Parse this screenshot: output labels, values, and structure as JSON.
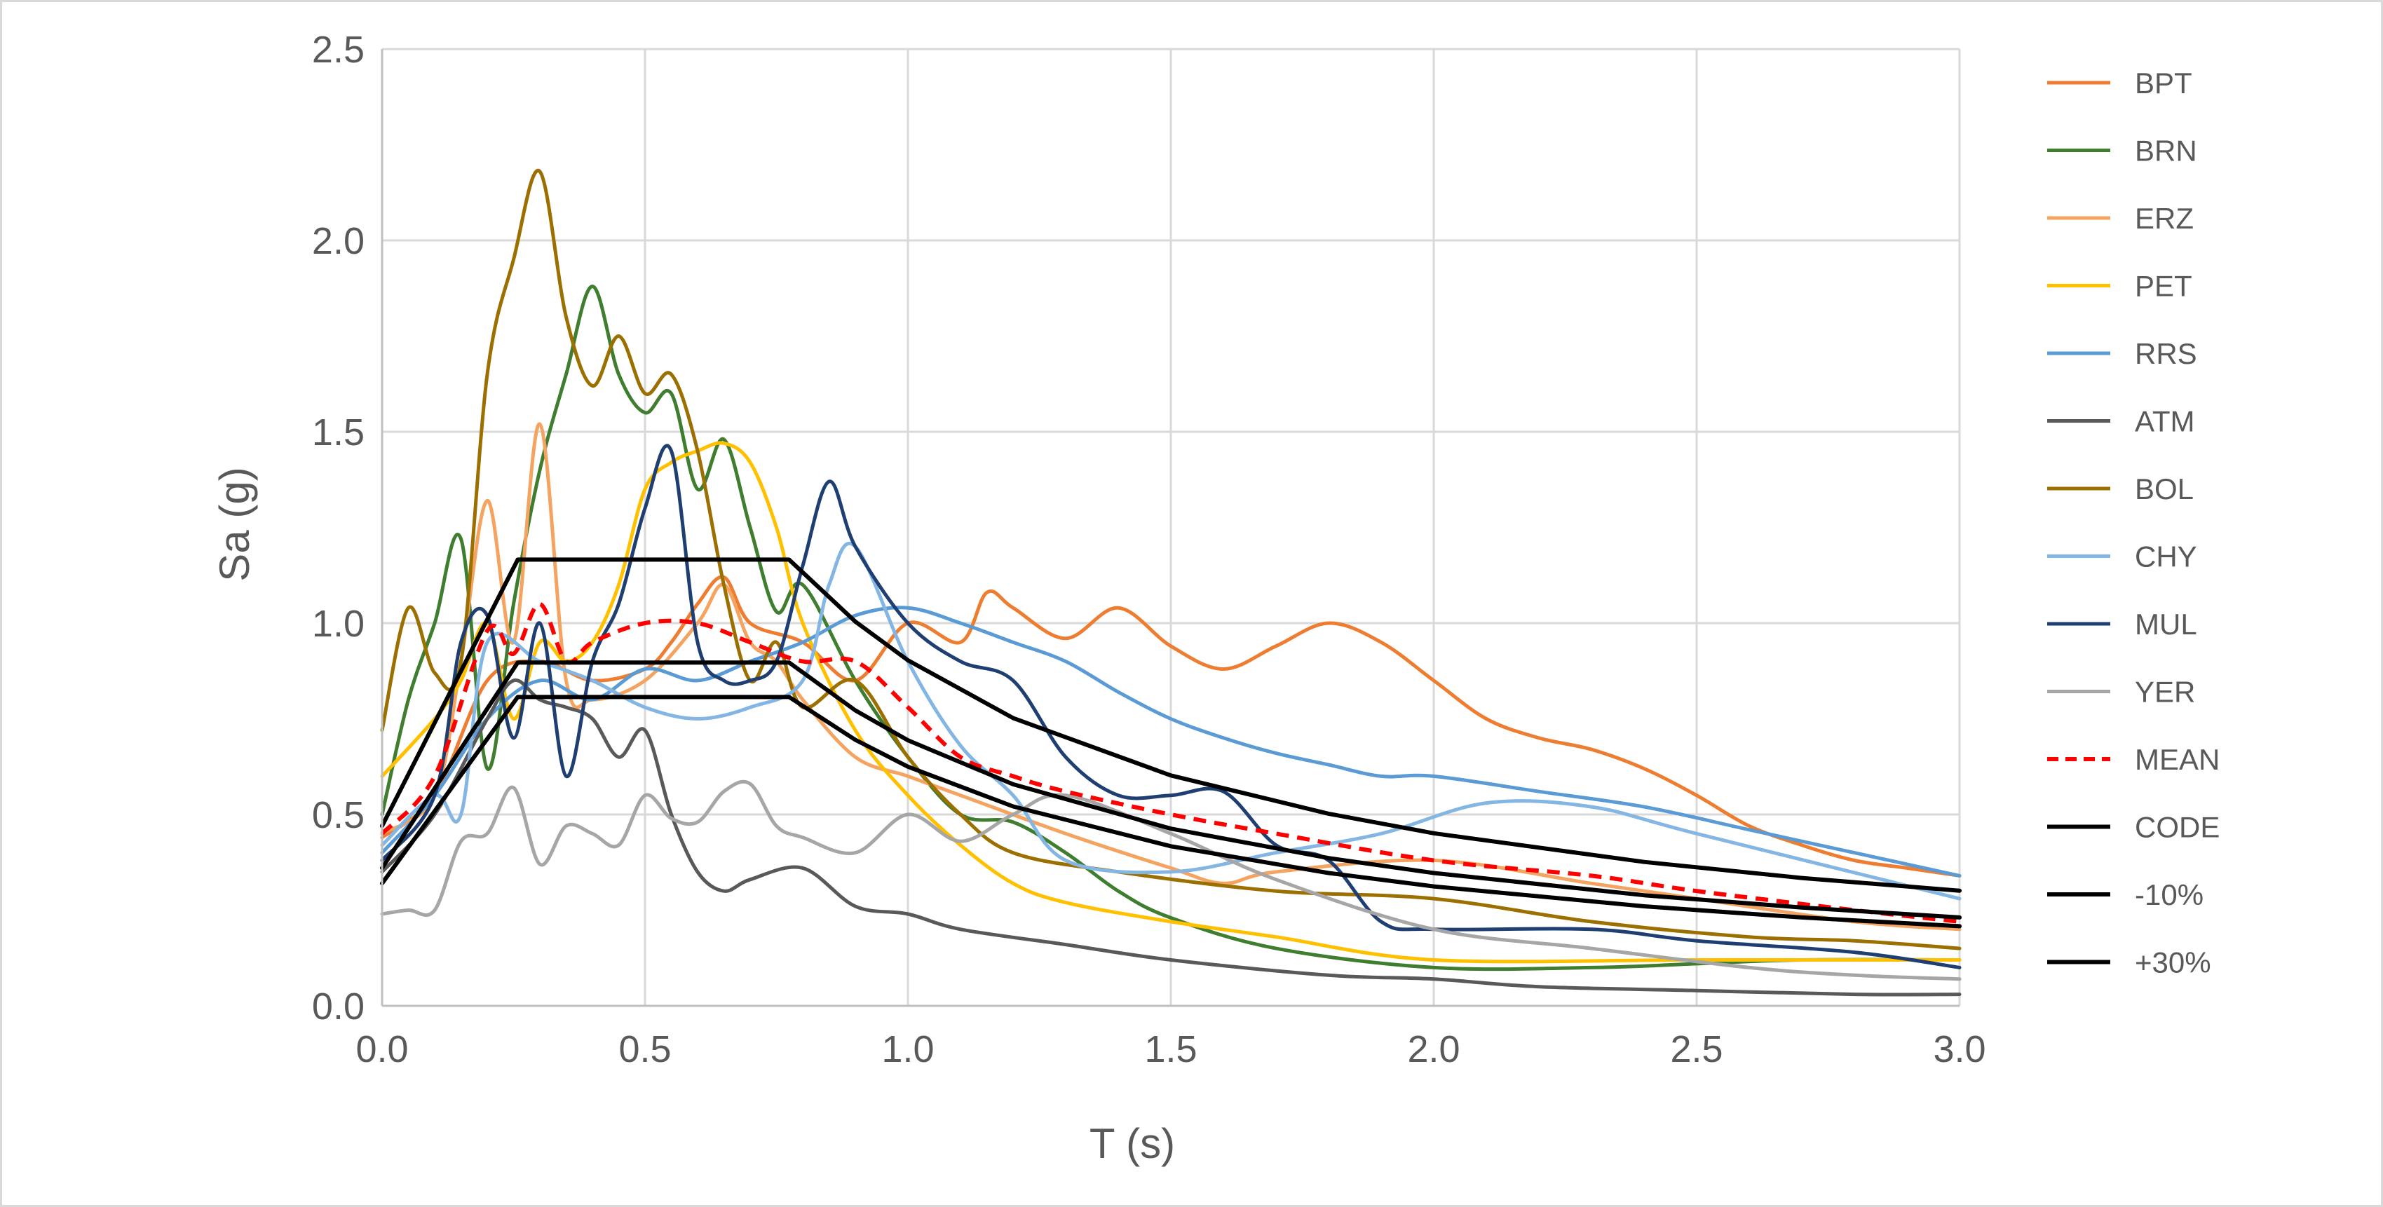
{
  "chart_data": {
    "type": "line",
    "title": "",
    "xlabel": "T (s)",
    "ylabel": "Sa (g)",
    "xlim": [
      0,
      3
    ],
    "ylim": [
      0,
      2.5
    ],
    "xticks": [
      "0.0",
      "0.5",
      "1.0",
      "1.5",
      "2.0",
      "2.5",
      "3.0"
    ],
    "yticks": [
      "0.0",
      "0.5",
      "1.0",
      "1.5",
      "2.0",
      "2.5"
    ],
    "grid": true,
    "legend_position": "right",
    "series": [
      {
        "name": "BPT",
        "color": "#ED7D31",
        "width": 5,
        "dash": "",
        "x": [
          0,
          0.1,
          0.2,
          0.3,
          0.4,
          0.5,
          0.55,
          0.6,
          0.65,
          0.7,
          0.8,
          0.9,
          1.0,
          1.1,
          1.15,
          1.2,
          1.3,
          1.4,
          1.5,
          1.6,
          1.7,
          1.8,
          1.9,
          2.0,
          2.1,
          2.2,
          2.3,
          2.4,
          2.5,
          2.6,
          2.7,
          2.8,
          2.9,
          3.0
        ],
        "y": [
          0.44,
          0.55,
          0.85,
          0.9,
          0.85,
          0.88,
          0.95,
          1.05,
          1.12,
          1.0,
          0.95,
          0.85,
          1.0,
          0.95,
          1.08,
          1.04,
          0.96,
          1.04,
          0.94,
          0.88,
          0.94,
          1.0,
          0.95,
          0.85,
          0.75,
          0.7,
          0.67,
          0.62,
          0.55,
          0.47,
          0.42,
          0.38,
          0.36,
          0.34
        ]
      },
      {
        "name": "BRN",
        "color": "#3F7D2F",
        "width": 5,
        "dash": "",
        "x": [
          0,
          0.05,
          0.1,
          0.15,
          0.2,
          0.25,
          0.3,
          0.35,
          0.4,
          0.45,
          0.5,
          0.55,
          0.6,
          0.65,
          0.7,
          0.75,
          0.8,
          0.9,
          1.0,
          1.1,
          1.2,
          1.3,
          1.4,
          1.5,
          1.7,
          2.0,
          2.3,
          2.5,
          2.7,
          3.0
        ],
        "y": [
          0.5,
          0.8,
          1.0,
          1.22,
          0.62,
          1.05,
          1.4,
          1.65,
          1.88,
          1.65,
          1.55,
          1.6,
          1.35,
          1.48,
          1.25,
          1.03,
          1.1,
          0.85,
          0.65,
          0.5,
          0.48,
          0.4,
          0.3,
          0.23,
          0.15,
          0.1,
          0.1,
          0.11,
          0.12,
          0.12
        ]
      },
      {
        "name": "ERZ",
        "color": "#F4A460",
        "width": 5,
        "dash": "",
        "x": [
          0,
          0.1,
          0.15,
          0.2,
          0.25,
          0.3,
          0.35,
          0.4,
          0.5,
          0.6,
          0.65,
          0.7,
          0.75,
          0.8,
          0.9,
          1.0,
          1.1,
          1.3,
          1.5,
          1.6,
          1.7,
          2.0,
          2.3,
          2.5,
          2.8,
          3.0
        ],
        "y": [
          0.45,
          0.55,
          0.9,
          1.32,
          0.95,
          1.52,
          0.85,
          0.8,
          0.85,
          1.0,
          1.1,
          0.95,
          0.9,
          0.8,
          0.65,
          0.6,
          0.55,
          0.45,
          0.36,
          0.32,
          0.35,
          0.38,
          0.32,
          0.28,
          0.22,
          0.2
        ]
      },
      {
        "name": "PET",
        "color": "#FFC000",
        "width": 5,
        "dash": "",
        "x": [
          0,
          0.1,
          0.15,
          0.2,
          0.25,
          0.3,
          0.35,
          0.4,
          0.45,
          0.5,
          0.55,
          0.6,
          0.65,
          0.7,
          0.75,
          0.8,
          0.9,
          1.0,
          1.1,
          1.2,
          1.3,
          1.5,
          1.7,
          2.0,
          2.5,
          3.0
        ],
        "y": [
          0.6,
          0.75,
          0.85,
          1.0,
          0.75,
          0.95,
          0.9,
          0.95,
          1.1,
          1.35,
          1.42,
          1.45,
          1.47,
          1.42,
          1.25,
          1.0,
          0.72,
          0.55,
          0.42,
          0.32,
          0.27,
          0.22,
          0.18,
          0.12,
          0.12,
          0.12
        ]
      },
      {
        "name": "RRS",
        "color": "#5B9BD5",
        "width": 5,
        "dash": "",
        "x": [
          0,
          0.1,
          0.2,
          0.3,
          0.4,
          0.5,
          0.6,
          0.7,
          0.8,
          0.9,
          1.0,
          1.1,
          1.2,
          1.3,
          1.4,
          1.5,
          1.6,
          1.7,
          1.8,
          1.9,
          2.0,
          2.2,
          2.4,
          2.6,
          2.8,
          3.0
        ],
        "y": [
          0.4,
          0.55,
          0.75,
          0.85,
          0.8,
          0.88,
          0.85,
          0.9,
          0.95,
          1.02,
          1.04,
          1.0,
          0.95,
          0.9,
          0.82,
          0.75,
          0.7,
          0.66,
          0.63,
          0.6,
          0.6,
          0.56,
          0.52,
          0.46,
          0.4,
          0.34
        ]
      },
      {
        "name": "ATM",
        "color": "#595959",
        "width": 5,
        "dash": "",
        "x": [
          0,
          0.1,
          0.2,
          0.25,
          0.3,
          0.35,
          0.4,
          0.45,
          0.5,
          0.55,
          0.6,
          0.65,
          0.7,
          0.8,
          0.9,
          1.0,
          1.1,
          1.3,
          1.5,
          1.8,
          2.0,
          2.2,
          2.5,
          2.8,
          3.0
        ],
        "y": [
          0.35,
          0.5,
          0.75,
          0.85,
          0.8,
          0.78,
          0.75,
          0.65,
          0.72,
          0.5,
          0.35,
          0.3,
          0.33,
          0.36,
          0.26,
          0.24,
          0.2,
          0.16,
          0.12,
          0.08,
          0.07,
          0.05,
          0.04,
          0.03,
          0.03
        ]
      },
      {
        "name": "BOL",
        "color": "#9C7000",
        "width": 5,
        "dash": "",
        "x": [
          0,
          0.05,
          0.1,
          0.15,
          0.2,
          0.25,
          0.3,
          0.35,
          0.4,
          0.45,
          0.5,
          0.55,
          0.6,
          0.65,
          0.7,
          0.75,
          0.8,
          0.9,
          1.0,
          1.1,
          1.2,
          1.4,
          1.7,
          2.0,
          2.3,
          2.6,
          2.8,
          3.0
        ],
        "y": [
          0.72,
          1.04,
          0.87,
          0.9,
          1.65,
          1.95,
          2.18,
          1.8,
          1.62,
          1.75,
          1.6,
          1.65,
          1.45,
          1.1,
          0.85,
          0.95,
          0.78,
          0.85,
          0.65,
          0.5,
          0.4,
          0.35,
          0.3,
          0.28,
          0.22,
          0.18,
          0.17,
          0.15
        ]
      },
      {
        "name": "CHY",
        "color": "#84B6E3",
        "width": 5,
        "dash": "",
        "x": [
          0,
          0.1,
          0.15,
          0.2,
          0.3,
          0.4,
          0.5,
          0.6,
          0.7,
          0.8,
          0.85,
          0.9,
          1.0,
          1.1,
          1.2,
          1.3,
          1.5,
          1.7,
          1.9,
          2.1,
          2.3,
          2.5,
          3.0
        ],
        "y": [
          0.42,
          0.55,
          0.5,
          0.95,
          0.9,
          0.85,
          0.78,
          0.75,
          0.78,
          0.85,
          1.1,
          1.2,
          0.9,
          0.68,
          0.55,
          0.38,
          0.35,
          0.4,
          0.45,
          0.53,
          0.52,
          0.45,
          0.28
        ]
      },
      {
        "name": "MUL",
        "color": "#1F3F73",
        "width": 5,
        "dash": "",
        "x": [
          0,
          0.1,
          0.15,
          0.2,
          0.25,
          0.3,
          0.35,
          0.4,
          0.45,
          0.5,
          0.55,
          0.6,
          0.65,
          0.7,
          0.75,
          0.8,
          0.85,
          0.9,
          1.0,
          1.1,
          1.2,
          1.3,
          1.4,
          1.5,
          1.6,
          1.7,
          1.8,
          1.9,
          2.0,
          2.3,
          2.5,
          2.8,
          3.0
        ],
        "y": [
          0.38,
          0.55,
          0.95,
          1.02,
          0.7,
          1.0,
          0.6,
          0.9,
          1.05,
          1.3,
          1.45,
          0.95,
          0.85,
          0.85,
          0.9,
          1.15,
          1.37,
          1.2,
          1.0,
          0.9,
          0.85,
          0.65,
          0.55,
          0.55,
          0.56,
          0.42,
          0.38,
          0.22,
          0.2,
          0.2,
          0.17,
          0.14,
          0.1
        ]
      },
      {
        "name": "YER",
        "color": "#A6A6A6",
        "width": 5,
        "dash": "",
        "x": [
          0,
          0.05,
          0.1,
          0.15,
          0.2,
          0.25,
          0.3,
          0.35,
          0.4,
          0.45,
          0.5,
          0.55,
          0.6,
          0.65,
          0.7,
          0.75,
          0.8,
          0.9,
          1.0,
          1.1,
          1.2,
          1.3,
          1.5,
          1.7,
          2.0,
          2.3,
          2.6,
          2.8,
          3.0
        ],
        "y": [
          0.24,
          0.25,
          0.25,
          0.43,
          0.45,
          0.57,
          0.37,
          0.47,
          0.45,
          0.42,
          0.55,
          0.49,
          0.48,
          0.56,
          0.58,
          0.47,
          0.44,
          0.4,
          0.5,
          0.43,
          0.5,
          0.55,
          0.45,
          0.33,
          0.2,
          0.15,
          0.1,
          0.08,
          0.07
        ]
      },
      {
        "name": "MEAN",
        "color": "#FF0000",
        "width": 6,
        "dash": "18,12",
        "x": [
          0,
          0.1,
          0.2,
          0.25,
          0.3,
          0.35,
          0.4,
          0.5,
          0.6,
          0.7,
          0.8,
          0.9,
          1.0,
          1.1,
          1.2,
          1.3,
          1.5,
          1.7,
          2.0,
          2.3,
          2.5,
          2.8,
          3.0
        ],
        "y": [
          0.45,
          0.6,
          0.98,
          0.92,
          1.05,
          0.9,
          0.95,
          1.0,
          1.0,
          0.95,
          0.9,
          0.9,
          0.78,
          0.65,
          0.6,
          0.56,
          0.5,
          0.45,
          0.38,
          0.34,
          0.3,
          0.25,
          0.22
        ]
      },
      {
        "name": "CODE",
        "color": "#000000",
        "width": 6,
        "dash": "",
        "x": [
          0,
          0.258,
          0.774,
          0.9,
          1.0,
          1.2,
          1.5,
          1.8,
          2.0,
          2.4,
          2.7,
          3.0
        ],
        "y": [
          0.36,
          0.897,
          0.897,
          0.772,
          0.694,
          0.579,
          0.463,
          0.386,
          0.347,
          0.289,
          0.257,
          0.231
        ]
      },
      {
        "name": "-10%",
        "color": "#000000",
        "width": 6,
        "dash": "",
        "x": [
          0,
          0.258,
          0.774,
          0.9,
          1.0,
          1.2,
          1.5,
          1.8,
          2.0,
          2.4,
          2.7,
          3.0
        ],
        "y": [
          0.32,
          0.807,
          0.807,
          0.695,
          0.625,
          0.521,
          0.417,
          0.347,
          0.312,
          0.26,
          0.231,
          0.208
        ]
      },
      {
        "name": "+30%",
        "color": "#000000",
        "width": 6,
        "dash": "",
        "x": [
          0,
          0.258,
          0.774,
          0.9,
          1.0,
          1.2,
          1.5,
          1.8,
          2.0,
          2.4,
          2.7,
          3.0
        ],
        "y": [
          0.47,
          1.166,
          1.166,
          1.004,
          0.903,
          0.752,
          0.602,
          0.502,
          0.451,
          0.376,
          0.334,
          0.301
        ]
      }
    ]
  }
}
